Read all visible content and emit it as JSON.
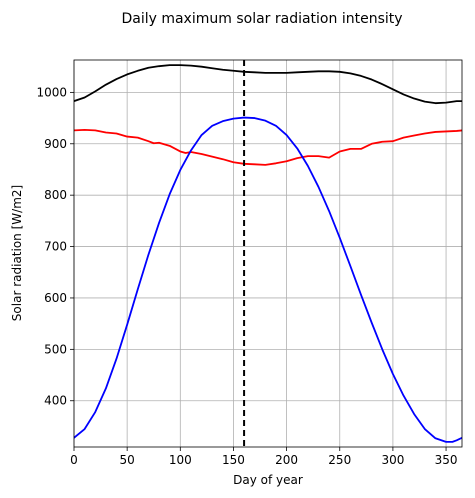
{
  "chart_data": {
    "type": "line",
    "title": "Daily maximum solar radiation intensity",
    "xlabel": "Day of year",
    "ylabel": "Solar radiation [W/m2]",
    "xlim": [
      0,
      365
    ],
    "ylim": [
      310,
      1063
    ],
    "xticks": [
      0,
      50,
      100,
      150,
      200,
      250,
      300,
      350
    ],
    "yticks": [
      400,
      500,
      600,
      700,
      800,
      900,
      1000
    ],
    "grid": true,
    "legend": "none",
    "vline": {
      "x": 160,
      "color": "#000000",
      "style": "dashed"
    },
    "series": [
      {
        "color": "#000000",
        "x": [
          0,
          10,
          20,
          30,
          40,
          50,
          60,
          70,
          80,
          90,
          100,
          110,
          120,
          130,
          140,
          150,
          160,
          170,
          180,
          190,
          200,
          210,
          220,
          230,
          240,
          250,
          260,
          270,
          280,
          290,
          300,
          310,
          320,
          330,
          340,
          350,
          360,
          365
        ],
        "y": [
          983,
          990,
          1002,
          1015,
          1026,
          1035,
          1042,
          1048,
          1051,
          1053,
          1053,
          1052,
          1050,
          1047,
          1044,
          1042,
          1040,
          1039,
          1038,
          1038,
          1038,
          1039,
          1040,
          1041,
          1041,
          1040,
          1037,
          1032,
          1025,
          1016,
          1006,
          996,
          988,
          982,
          979,
          980,
          983,
          983
        ]
      },
      {
        "color": "#ff0000",
        "x": [
          0,
          10,
          20,
          30,
          40,
          50,
          60,
          70,
          75,
          80,
          90,
          100,
          105,
          110,
          120,
          130,
          140,
          150,
          160,
          170,
          180,
          190,
          200,
          210,
          220,
          230,
          240,
          250,
          260,
          270,
          280,
          290,
          300,
          310,
          320,
          330,
          340,
          350,
          360,
          365
        ],
        "y": [
          926,
          927,
          926,
          922,
          920,
          914,
          912,
          905,
          901,
          902,
          896,
          885,
          882,
          884,
          880,
          875,
          870,
          864,
          861,
          860,
          859,
          862,
          866,
          872,
          876,
          876,
          873,
          885,
          890,
          890,
          900,
          904,
          905,
          912,
          916,
          920,
          923,
          924,
          925,
          926
        ]
      },
      {
        "color": "#0000ff",
        "x": [
          0,
          10,
          20,
          30,
          40,
          50,
          60,
          70,
          80,
          90,
          100,
          110,
          120,
          130,
          140,
          150,
          160,
          170,
          180,
          190,
          200,
          210,
          220,
          230,
          240,
          250,
          260,
          270,
          280,
          290,
          300,
          310,
          320,
          330,
          340,
          350,
          356,
          360,
          365
        ],
        "y": [
          328,
          345,
          378,
          424,
          482,
          548,
          617,
          684,
          746,
          802,
          849,
          887,
          917,
          935,
          944,
          949,
          951,
          950,
          945,
          935,
          917,
          891,
          857,
          816,
          769,
          717,
          662,
          606,
          552,
          500,
          452,
          410,
          374,
          345,
          327,
          320,
          320,
          323,
          328
        ]
      }
    ]
  }
}
